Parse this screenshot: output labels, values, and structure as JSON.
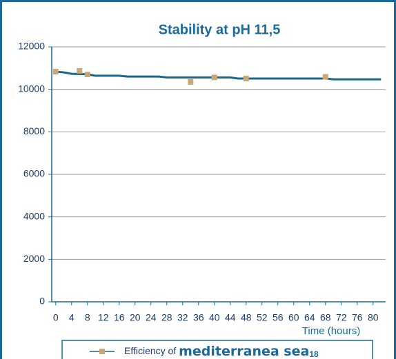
{
  "chart_data": {
    "type": "line",
    "title": "Stability at pH 11,5",
    "x_label": "Time (hours)",
    "xlim": [
      -1,
      84
    ],
    "xticks": [
      0,
      4,
      8,
      12,
      16,
      20,
      24,
      28,
      32,
      36,
      40,
      44,
      48,
      52,
      56,
      60,
      64,
      68,
      72,
      76,
      80
    ],
    "ylim": [
      0,
      12000
    ],
    "yticks": [
      0,
      2000,
      4000,
      6000,
      8000,
      10000,
      12000
    ],
    "grid": true,
    "series": [
      {
        "name": [
          "Efficiency of ",
          "mediterranea sea",
          "18"
        ],
        "color": "#c9a878",
        "line_color": "#1b6688",
        "x": [
          0,
          6,
          8,
          34,
          40,
          48,
          68
        ],
        "values": [
          10830,
          10870,
          10700,
          10350,
          10560,
          10510,
          10590
        ],
        "line_x": [
          0,
          2,
          4,
          8,
          10,
          16,
          18,
          26,
          28,
          44,
          46,
          68,
          70,
          82
        ],
        "line_values": [
          10830,
          10800,
          10730,
          10710,
          10640,
          10640,
          10600,
          10600,
          10560,
          10560,
          10510,
          10510,
          10470,
          10470
        ]
      }
    ]
  }
}
